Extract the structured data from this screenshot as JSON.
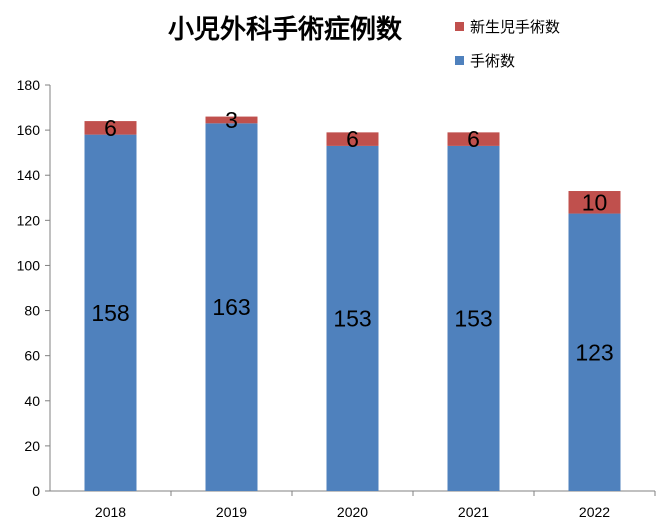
{
  "chart_data": {
    "type": "bar",
    "stacked": true,
    "title": "小児外科手術症例数",
    "categories": [
      "2018",
      "2019",
      "2020",
      "2021",
      "2022"
    ],
    "series": [
      {
        "name": "手術数",
        "values": [
          158,
          163,
          153,
          153,
          123
        ],
        "color": "#4F81BD"
      },
      {
        "name": "新生児手術数",
        "values": [
          6,
          3,
          6,
          6,
          10
        ],
        "color": "#C0504D"
      }
    ],
    "ylim": [
      0,
      180
    ],
    "yticks": [
      0,
      20,
      40,
      60,
      80,
      100,
      120,
      140,
      160,
      180
    ],
    "grid": false,
    "legend_position": "top-right",
    "xlabel": "",
    "ylabel": ""
  }
}
